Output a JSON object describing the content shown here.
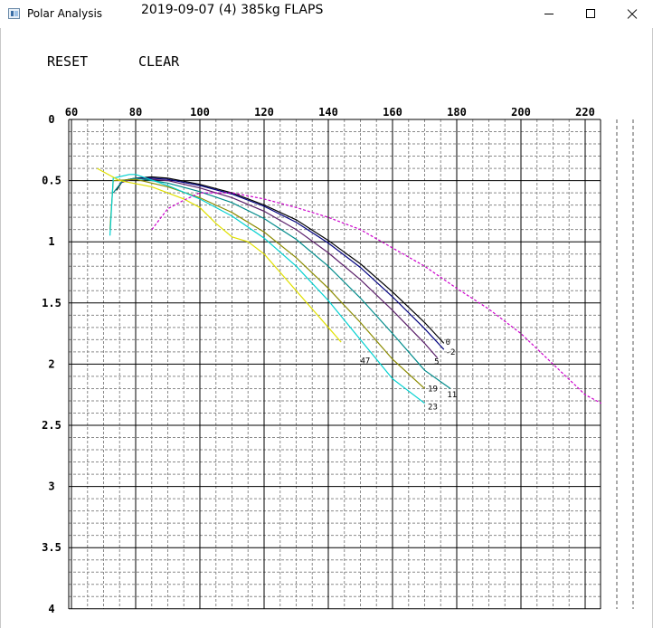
{
  "window": {
    "app_title": "Polar Analysis",
    "session_title": "2019-09-07 (4) 385kg FLAPS"
  },
  "toolbar": {
    "reset_label": "RESET",
    "clear_label": "CLEAR"
  },
  "chart_data": {
    "type": "line",
    "title": "",
    "xlabel": "",
    "ylabel": "",
    "xlim": [
      60,
      225
    ],
    "ylim": [
      0,
      4
    ],
    "y_inverted": true,
    "x_ticks": [
      60,
      80,
      100,
      120,
      140,
      160,
      180,
      200,
      220
    ],
    "y_ticks": [
      0,
      0.5,
      1,
      1.5,
      2,
      2.5,
      3,
      3.5,
      4
    ],
    "y_tick_labels": [
      "0",
      "0.5",
      "1",
      "1.5",
      "2",
      "2.5",
      "3",
      "3.5",
      "4"
    ],
    "grid": true,
    "series": [
      {
        "name": "0",
        "color": "#000000",
        "dash": false,
        "label_at": [
          176.5,
          1.82
        ],
        "points": [
          [
            74,
            0.58
          ],
          [
            76,
            0.5
          ],
          [
            80,
            0.48
          ],
          [
            85,
            0.47
          ],
          [
            90,
            0.48
          ],
          [
            100,
            0.53
          ],
          [
            110,
            0.6
          ],
          [
            120,
            0.7
          ],
          [
            130,
            0.82
          ],
          [
            140,
            0.99
          ],
          [
            150,
            1.18
          ],
          [
            160,
            1.41
          ],
          [
            170,
            1.66
          ],
          [
            176,
            1.83
          ]
        ]
      },
      {
        "name": "-2",
        "color": "#00007f",
        "dash": false,
        "label_at": [
          176.5,
          1.9
        ],
        "points": [
          [
            76,
            0.5
          ],
          [
            80,
            0.48
          ],
          [
            85,
            0.48
          ],
          [
            90,
            0.49
          ],
          [
            100,
            0.54
          ],
          [
            110,
            0.61
          ],
          [
            120,
            0.71
          ],
          [
            130,
            0.84
          ],
          [
            140,
            1.01
          ],
          [
            150,
            1.21
          ],
          [
            160,
            1.45
          ],
          [
            170,
            1.71
          ],
          [
            176,
            1.88
          ]
        ]
      },
      {
        "name": "5",
        "color": "#5a1f6a",
        "dash": false,
        "label_at": [
          173,
          1.98
        ],
        "points": [
          [
            75,
            0.52
          ],
          [
            80,
            0.48
          ],
          [
            90,
            0.5
          ],
          [
            100,
            0.56
          ],
          [
            110,
            0.64
          ],
          [
            120,
            0.75
          ],
          [
            130,
            0.9
          ],
          [
            140,
            1.09
          ],
          [
            150,
            1.31
          ],
          [
            160,
            1.56
          ],
          [
            170,
            1.83
          ],
          [
            174,
            1.95
          ]
        ]
      },
      {
        "name": "11",
        "color": "#008b8b",
        "dash": false,
        "label_at": [
          177,
          2.25
        ],
        "points": [
          [
            73,
            0.6
          ],
          [
            76,
            0.5
          ],
          [
            80,
            0.48
          ],
          [
            90,
            0.52
          ],
          [
            100,
            0.59
          ],
          [
            110,
            0.68
          ],
          [
            120,
            0.81
          ],
          [
            130,
            0.98
          ],
          [
            140,
            1.2
          ],
          [
            150,
            1.46
          ],
          [
            160,
            1.75
          ],
          [
            170,
            2.05
          ],
          [
            178,
            2.2
          ]
        ]
      },
      {
        "name": "19",
        "color": "#8b8b00",
        "dash": false,
        "label_at": [
          171,
          2.2
        ],
        "points": [
          [
            72,
            0.9
          ],
          [
            73,
            0.5
          ],
          [
            80,
            0.49
          ],
          [
            90,
            0.55
          ],
          [
            100,
            0.64
          ],
          [
            110,
            0.76
          ],
          [
            120,
            0.92
          ],
          [
            130,
            1.13
          ],
          [
            140,
            1.38
          ],
          [
            150,
            1.66
          ],
          [
            160,
            1.96
          ],
          [
            170,
            2.2
          ]
        ]
      },
      {
        "name": "23",
        "color": "#00d0d0",
        "dash": false,
        "label_at": [
          171,
          2.35
        ],
        "points": [
          [
            72,
            0.95
          ],
          [
            73,
            0.48
          ],
          [
            78,
            0.45
          ],
          [
            80,
            0.45
          ],
          [
            90,
            0.54
          ],
          [
            100,
            0.65
          ],
          [
            110,
            0.79
          ],
          [
            120,
            0.97
          ],
          [
            130,
            1.2
          ],
          [
            140,
            1.48
          ],
          [
            150,
            1.8
          ],
          [
            160,
            2.12
          ],
          [
            170,
            2.32
          ]
        ]
      },
      {
        "name": "47",
        "color": "#e0e000",
        "dash": false,
        "label_at": [
          150,
          1.97
        ],
        "points": [
          [
            68,
            0.4
          ],
          [
            75,
            0.5
          ],
          [
            85,
            0.55
          ],
          [
            95,
            0.65
          ],
          [
            100,
            0.72
          ],
          [
            105,
            0.85
          ],
          [
            110,
            0.96
          ],
          [
            115,
            1.0
          ],
          [
            120,
            1.1
          ],
          [
            125,
            1.25
          ],
          [
            130,
            1.4
          ],
          [
            135,
            1.55
          ],
          [
            140,
            1.7
          ],
          [
            144,
            1.82
          ]
        ]
      },
      {
        "name": "",
        "color": "#cc00cc",
        "dash": true,
        "label_at": null,
        "points": [
          [
            85,
            0.9
          ],
          [
            90,
            0.73
          ],
          [
            95,
            0.66
          ],
          [
            100,
            0.6
          ],
          [
            110,
            0.6
          ],
          [
            120,
            0.65
          ],
          [
            130,
            0.72
          ],
          [
            140,
            0.8
          ],
          [
            150,
            0.9
          ],
          [
            160,
            1.05
          ],
          [
            170,
            1.2
          ],
          [
            180,
            1.38
          ],
          [
            190,
            1.55
          ],
          [
            200,
            1.75
          ],
          [
            210,
            2.0
          ],
          [
            220,
            2.25
          ],
          [
            225,
            2.32
          ]
        ]
      }
    ]
  }
}
